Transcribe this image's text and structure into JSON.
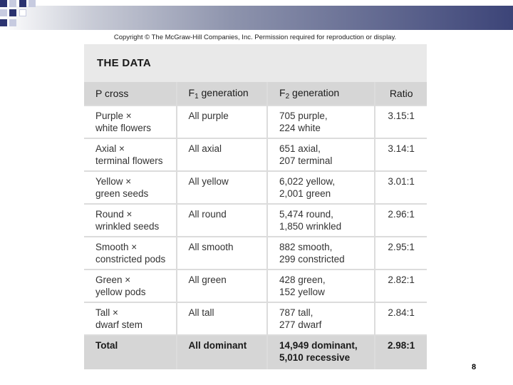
{
  "copyright": "Copyright © The McGraw-Hill Companies, Inc. Permission required for reproduction or display.",
  "table_title": "THE DATA",
  "headers": {
    "p_cross": "P cross",
    "f1_prefix": "F",
    "f1_sub": "1",
    "f1_suffix": " generation",
    "f2_prefix": "F",
    "f2_sub": "2",
    "f2_suffix": " generation",
    "ratio": "Ratio"
  },
  "rows": [
    {
      "cross1": "Purple ×",
      "cross2": "white flowers",
      "f1": "All purple",
      "f2a": "705 purple,",
      "f2b": "224 white",
      "ratio": "3.15:1"
    },
    {
      "cross1": "Axial ×",
      "cross2": "terminal flowers",
      "f1": "All axial",
      "f2a": "651 axial,",
      "f2b": "207 terminal",
      "ratio": "3.14:1"
    },
    {
      "cross1": "Yellow ×",
      "cross2": "green seeds",
      "f1": "All yellow",
      "f2a": "6,022 yellow,",
      "f2b": "2,001 green",
      "ratio": "3.01:1"
    },
    {
      "cross1": "Round ×",
      "cross2": "wrinkled seeds",
      "f1": "All round",
      "f2a": "5,474 round,",
      "f2b": "1,850 wrinkled",
      "ratio": "2.96:1"
    },
    {
      "cross1": "Smooth ×",
      "cross2": "constricted pods",
      "f1": "All smooth",
      "f2a": "882 smooth,",
      "f2b": "299 constricted",
      "ratio": "2.95:1"
    },
    {
      "cross1": "Green ×",
      "cross2": "yellow pods",
      "f1": "All green",
      "f2a": "428 green,",
      "f2b": "152 yellow",
      "ratio": "2.82:1"
    },
    {
      "cross1": "Tall ×",
      "cross2": "dwarf stem",
      "f1": "All tall",
      "f2a": "787 tall,",
      "f2b": "277 dwarf",
      "ratio": "2.84:1"
    }
  ],
  "total": {
    "label": "Total",
    "f1": "All dominant",
    "f2a": "14,949 dominant,",
    "f2b": "5,010 recessive",
    "ratio": "2.98:1"
  },
  "page_number": "8",
  "colors": {
    "panel": "#e9e9e9",
    "header": "#d6d6d6",
    "deco_dark": "#2b3370"
  }
}
